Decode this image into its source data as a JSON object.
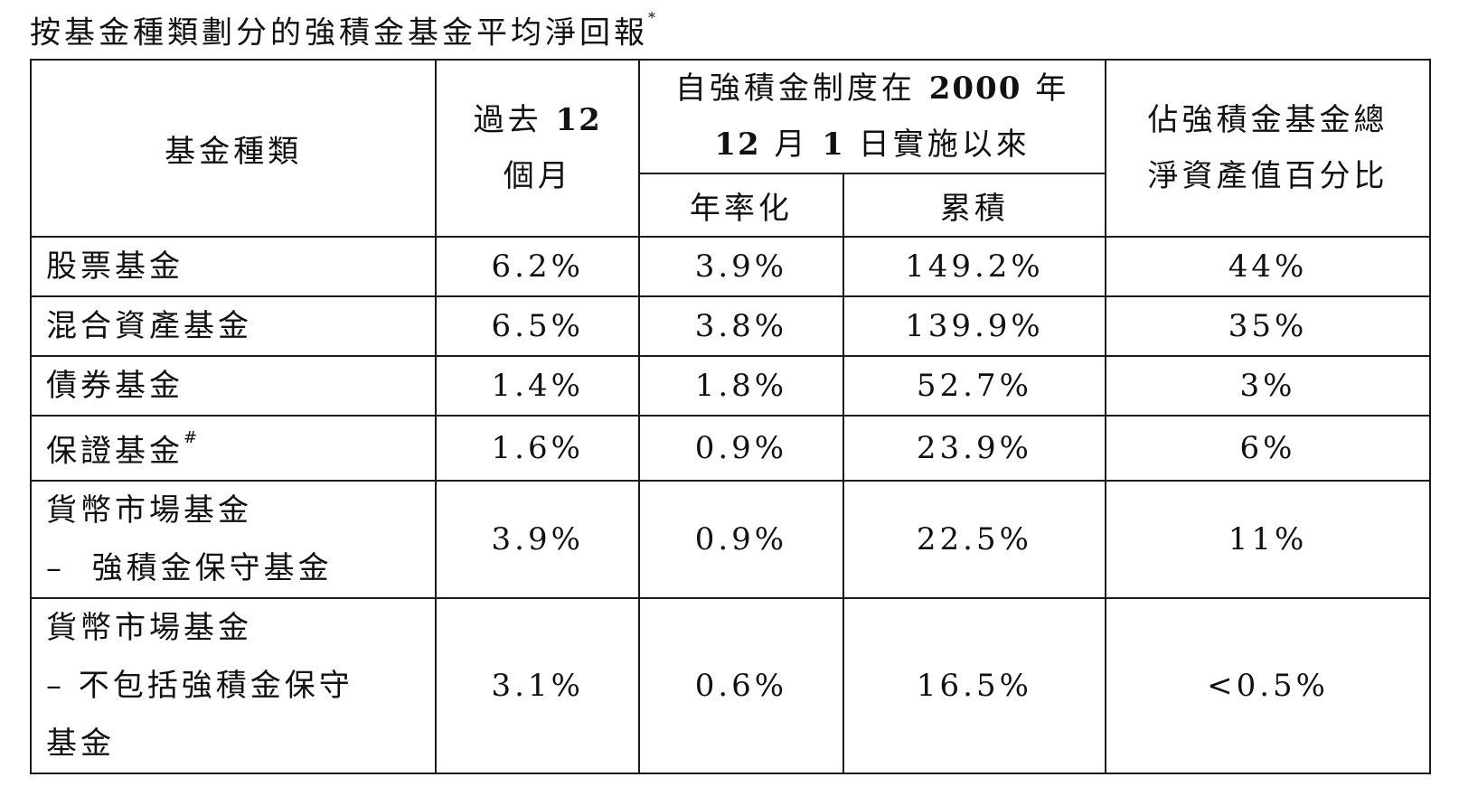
{
  "title": {
    "text": "按基金種類劃分的強積金基金平均淨回報",
    "footnote_mark": "*"
  },
  "table": {
    "headers": {
      "fund_type": "基金種類",
      "past12_line1_text": "過去",
      "past12_line1_num": "12",
      "past12_line2": "個月",
      "since_line1_text": "自強積金制度在",
      "since_line1_num": "2000",
      "since_line1_tail": "年",
      "since_line2_num1": "12",
      "since_line2_mid": "月",
      "since_line2_num2": "1",
      "since_line2_tail": "日實施以來",
      "annualized": "年率化",
      "cumulative": "累積",
      "share_line1": "佔強積金基金總",
      "share_line2": "淨資產值百分比"
    },
    "rows": [
      {
        "fund_line1": "股票基金",
        "fund_line2": "",
        "fund_line3": "",
        "mark": "",
        "past12": "6.2%",
        "annualized": "3.9%",
        "cumulative": "149.2%",
        "share": "44%"
      },
      {
        "fund_line1": "混合資產基金",
        "fund_line2": "",
        "fund_line3": "",
        "mark": "",
        "past12": "6.5%",
        "annualized": "3.8%",
        "cumulative": "139.9%",
        "share": "35%"
      },
      {
        "fund_line1": "債券基金",
        "fund_line2": "",
        "fund_line3": "",
        "mark": "",
        "past12": "1.4%",
        "annualized": "1.8%",
        "cumulative": "52.7%",
        "share": "3%"
      },
      {
        "fund_line1": "保證基金",
        "fund_line2": "",
        "fund_line3": "",
        "mark": "#",
        "past12": "1.6%",
        "annualized": "0.9%",
        "cumulative": "23.9%",
        "share": "6%"
      },
      {
        "fund_line1": "貨幣市場基金",
        "fund_line2": "–  強積金保守基金",
        "fund_line3": "",
        "mark": "",
        "past12": "3.9%",
        "annualized": "0.9%",
        "cumulative": "22.5%",
        "share": "11%"
      },
      {
        "fund_line1": "貨幣市場基金",
        "fund_line2": "– 不包括強積金保守",
        "fund_line3": "基金",
        "mark": "",
        "past12": "3.1%",
        "annualized": "0.6%",
        "cumulative": "16.5%",
        "share": "<0.5%"
      }
    ]
  }
}
